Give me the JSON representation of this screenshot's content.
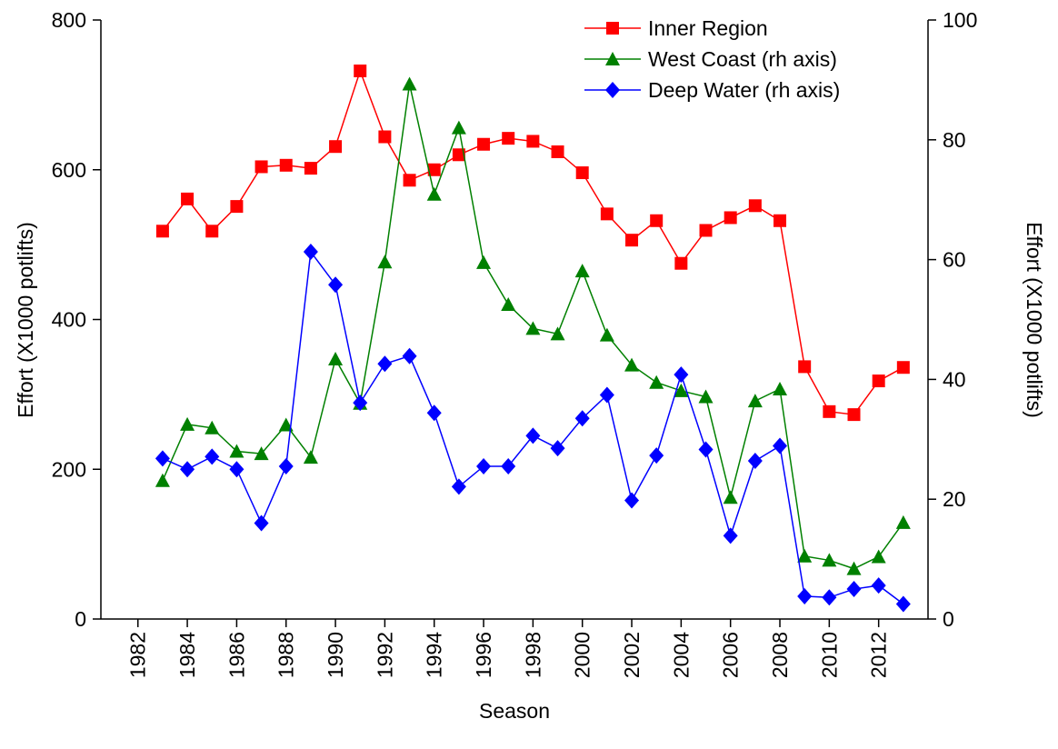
{
  "chart_data": {
    "type": "line",
    "x_label": "Season",
    "y_label": "Effort (X1000 potlifts)",
    "y2_label": "Effort (X1000 potlifts)",
    "x": [
      1983,
      1984,
      1985,
      1986,
      1987,
      1988,
      1989,
      1990,
      1991,
      1992,
      1993,
      1994,
      1995,
      1996,
      1997,
      1998,
      1999,
      2000,
      2001,
      2002,
      2003,
      2004,
      2005,
      2006,
      2007,
      2008,
      2009,
      2010,
      2011,
      2012,
      2013
    ],
    "xlim": [
      1980.5,
      2014
    ],
    "xticks": [
      1982,
      1984,
      1986,
      1988,
      1990,
      1992,
      1994,
      1996,
      1998,
      2000,
      2002,
      2004,
      2006,
      2008,
      2010,
      2012
    ],
    "ylim": [
      0,
      800
    ],
    "yticks": [
      0,
      200,
      400,
      600,
      800
    ],
    "y2lim": [
      0,
      100
    ],
    "y2ticks": [
      0,
      20,
      40,
      60,
      80,
      100
    ],
    "legend": "top-right",
    "series": [
      {
        "name": "Inner Region",
        "color": "#ff0000",
        "marker": "square",
        "values": [
          518,
          561,
          518,
          551,
          604,
          606,
          602,
          631,
          732,
          644,
          586,
          600,
          620,
          634,
          642,
          638,
          624,
          596,
          541,
          506,
          532,
          475,
          519,
          536,
          552,
          532,
          337,
          277,
          273,
          318,
          336
        ]
      },
      {
        "name": "West Coast (rh axis)",
        "color": "#008000",
        "marker": "triangle",
        "axis": "y2",
        "values": [
          23.1,
          32.5,
          31.9,
          28,
          27.6,
          32.4,
          27,
          43.4,
          36,
          59.6,
          89.3,
          70.9,
          82,
          59.5,
          52.5,
          48.5,
          47.6,
          58.1,
          47.4,
          42.4,
          39.5,
          38.1,
          37.1,
          20.3,
          36.4,
          38.4,
          10.5,
          9.8,
          8.4,
          10.4,
          16.1
        ]
      },
      {
        "name": "Deep Water (rh axis)",
        "color": "#0000ff",
        "marker": "diamond",
        "axis": "y2",
        "values": [
          26.8,
          25,
          27.1,
          25,
          16,
          25.5,
          61.3,
          55.8,
          36.1,
          42.6,
          43.9,
          34.4,
          22.1,
          25.5,
          25.5,
          30.6,
          28.5,
          33.5,
          37.4,
          19.8,
          27.3,
          40.8,
          28.3,
          13.9,
          26.4,
          28.9,
          3.8,
          3.6,
          5,
          5.6,
          2.5
        ]
      }
    ]
  }
}
